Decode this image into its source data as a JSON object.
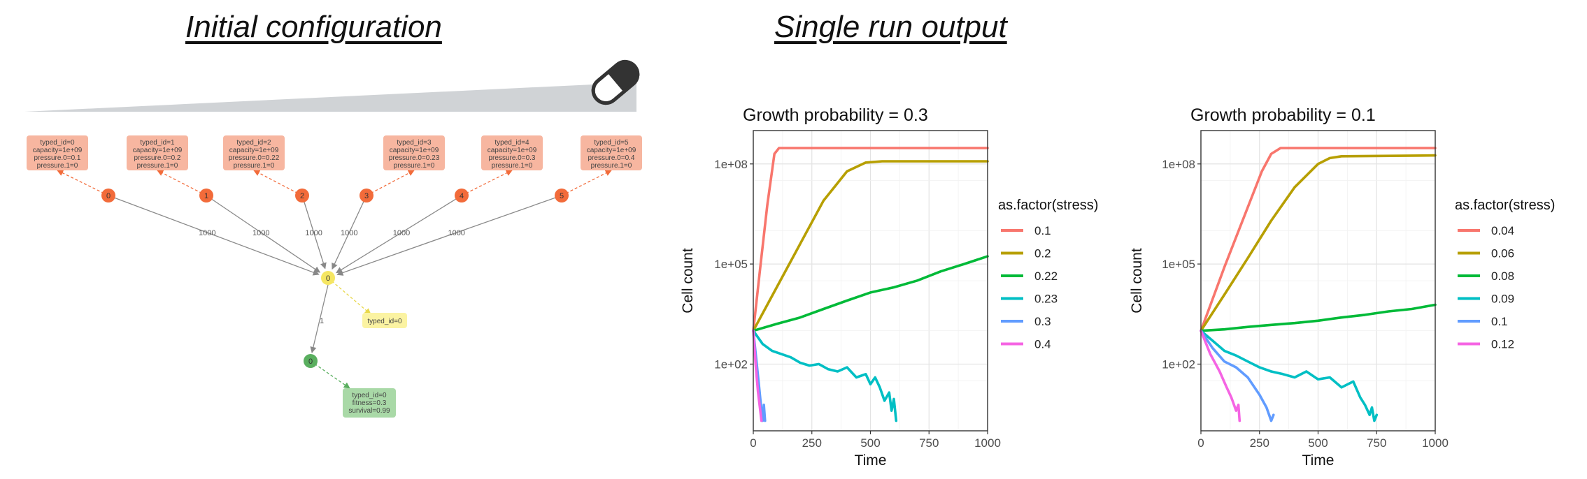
{
  "headings": {
    "left": "Initial configuration",
    "right": "Single run output"
  },
  "colors": {
    "stress_node": "#f26b3a",
    "stress_box": "#f7b6a0",
    "pop_node": "#f5e663",
    "pop_box": "#fbf3a2",
    "mut_node": "#5aaf5f",
    "mut_box": "#a9d9a7",
    "wedge": "#d0d3d6"
  },
  "diagram": {
    "stress_nodes": [
      {
        "id": "0",
        "lines": [
          "typed_id=0",
          "capacity=1e+09",
          "pressure.0=0.1",
          "pressure.1=0"
        ],
        "edge": "1000"
      },
      {
        "id": "1",
        "lines": [
          "typed_id=1",
          "capacity=1e+09",
          "pressure.0=0.2",
          "pressure.1=0"
        ],
        "edge": "1000"
      },
      {
        "id": "2",
        "lines": [
          "typed_id=2",
          "capacity=1e+09",
          "pressure.0=0.22",
          "pressure.1=0"
        ],
        "edge": "1000"
      },
      {
        "id": "3",
        "lines": [
          "typed_id=3",
          "capacity=1e+09",
          "pressure.0=0.23",
          "pressure.1=0"
        ],
        "edge": "1000"
      },
      {
        "id": "4",
        "lines": [
          "typed_id=4",
          "capacity=1e+09",
          "pressure.0=0.3",
          "pressure.1=0"
        ],
        "edge": "1000"
      },
      {
        "id": "5",
        "lines": [
          "typed_id=5",
          "capacity=1e+09",
          "pressure.0=0.4",
          "pressure.1=0"
        ],
        "edge": "1000"
      }
    ],
    "population_node": {
      "id": "0",
      "label": "typed_id=0"
    },
    "population_edge": "1",
    "mutation_node": {
      "id": "0",
      "lines": [
        "typed_id=0",
        "fitness=0.3",
        "survival=0.99"
      ]
    }
  },
  "chart_data": [
    {
      "type": "line",
      "title": "Growth probability = 0.3",
      "xlabel": "Time",
      "ylabel": "Cell count",
      "y_scale": "log10",
      "xlim": [
        0,
        1000
      ],
      "ylim": [
        1,
        1000000000
      ],
      "x_ticks": [
        "0",
        "250",
        "500",
        "750",
        "1000"
      ],
      "y_ticks": [
        "1e+02",
        "1e+05",
        "1e+08"
      ],
      "grid": true,
      "legend_title": "as.factor(stress)",
      "legend_position": "right",
      "series": [
        {
          "name": "0.1",
          "color": "#f8766d",
          "points": [
            [
              0,
              1000
            ],
            [
              30,
              80000
            ],
            [
              60,
              6000000
            ],
            [
              90,
              200000000
            ],
            [
              110,
              300000000
            ],
            [
              1000,
              300000000
            ]
          ]
        },
        {
          "name": "0.2",
          "color": "#b79f00",
          "points": [
            [
              0,
              1000
            ],
            [
              100,
              20000
            ],
            [
              200,
              400000
            ],
            [
              300,
              8000000
            ],
            [
              400,
              60000000
            ],
            [
              480,
              110000000
            ],
            [
              550,
              120000000
            ],
            [
              1000,
              120000000
            ]
          ]
        },
        {
          "name": "0.22",
          "color": "#00ba38",
          "points": [
            [
              0,
              1000
            ],
            [
              100,
              1600
            ],
            [
              200,
              2500
            ],
            [
              300,
              4500
            ],
            [
              400,
              8000
            ],
            [
              500,
              14000
            ],
            [
              600,
              20000
            ],
            [
              700,
              32000
            ],
            [
              800,
              60000
            ],
            [
              900,
              100000
            ],
            [
              1000,
              170000
            ]
          ]
        },
        {
          "name": "0.23",
          "color": "#00bfc4",
          "points": [
            [
              0,
              1000
            ],
            [
              40,
              400
            ],
            [
              80,
              250
            ],
            [
              120,
              200
            ],
            [
              160,
              160
            ],
            [
              200,
              110
            ],
            [
              240,
              90
            ],
            [
              280,
              100
            ],
            [
              320,
              70
            ],
            [
              360,
              60
            ],
            [
              400,
              80
            ],
            [
              440,
              40
            ],
            [
              480,
              50
            ],
            [
              500,
              25
            ],
            [
              520,
              40
            ],
            [
              540,
              20
            ],
            [
              560,
              8
            ],
            [
              580,
              14
            ],
            [
              590,
              4
            ],
            [
              600,
              9
            ],
            [
              610,
              2
            ]
          ]
        },
        {
          "name": "0.3",
          "color": "#619cff",
          "points": [
            [
              0,
              1000
            ],
            [
              15,
              100
            ],
            [
              25,
              20
            ],
            [
              35,
              4
            ],
            [
              40,
              2
            ],
            [
              45,
              6
            ],
            [
              50,
              2
            ]
          ]
        },
        {
          "name": "0.4",
          "color": "#f564e3",
          "points": [
            [
              0,
              1000
            ],
            [
              10,
              100
            ],
            [
              20,
              15
            ],
            [
              30,
              4
            ],
            [
              35,
              2
            ]
          ]
        }
      ]
    },
    {
      "type": "line",
      "title": "Growth probability = 0.1",
      "xlabel": "Time",
      "ylabel": "Cell count",
      "y_scale": "log10",
      "xlim": [
        0,
        1000
      ],
      "ylim": [
        1,
        1000000000
      ],
      "x_ticks": [
        "0",
        "250",
        "500",
        "750",
        "1000"
      ],
      "y_ticks": [
        "1e+02",
        "1e+05",
        "1e+08"
      ],
      "grid": true,
      "legend_title": "as.factor(stress)",
      "legend_position": "right",
      "series": [
        {
          "name": "0.04",
          "color": "#f8766d",
          "points": [
            [
              0,
              1000
            ],
            [
              100,
              80000
            ],
            [
              200,
              5000000
            ],
            [
              260,
              60000000
            ],
            [
              300,
              200000000
            ],
            [
              340,
              300000000
            ],
            [
              1000,
              300000000
            ]
          ]
        },
        {
          "name": "0.06",
          "color": "#b79f00",
          "points": [
            [
              0,
              1000
            ],
            [
              100,
              12000
            ],
            [
              200,
              150000
            ],
            [
              300,
              2000000
            ],
            [
              400,
              20000000
            ],
            [
              500,
              100000000
            ],
            [
              550,
              150000000
            ],
            [
              600,
              170000000
            ],
            [
              1000,
              180000000
            ]
          ]
        },
        {
          "name": "0.08",
          "color": "#00ba38",
          "points": [
            [
              0,
              1000
            ],
            [
              100,
              1100
            ],
            [
              200,
              1300
            ],
            [
              300,
              1500
            ],
            [
              400,
              1700
            ],
            [
              500,
              2000
            ],
            [
              600,
              2500
            ],
            [
              700,
              3000
            ],
            [
              800,
              3800
            ],
            [
              900,
              4500
            ],
            [
              1000,
              6000
            ]
          ]
        },
        {
          "name": "0.09",
          "color": "#00bfc4",
          "points": [
            [
              0,
              1000
            ],
            [
              50,
              500
            ],
            [
              100,
              250
            ],
            [
              150,
              180
            ],
            [
              200,
              120
            ],
            [
              250,
              80
            ],
            [
              300,
              60
            ],
            [
              350,
              50
            ],
            [
              400,
              40
            ],
            [
              450,
              60
            ],
            [
              500,
              35
            ],
            [
              550,
              40
            ],
            [
              600,
              20
            ],
            [
              650,
              30
            ],
            [
              680,
              10
            ],
            [
              700,
              6
            ],
            [
              720,
              3
            ],
            [
              730,
              5
            ],
            [
              740,
              2
            ],
            [
              750,
              3
            ]
          ]
        },
        {
          "name": "0.1",
          "color": "#619cff",
          "points": [
            [
              0,
              1000
            ],
            [
              50,
              300
            ],
            [
              100,
              120
            ],
            [
              150,
              80
            ],
            [
              200,
              40
            ],
            [
              250,
              12
            ],
            [
              280,
              5
            ],
            [
              300,
              2
            ],
            [
              310,
              3
            ]
          ]
        },
        {
          "name": "0.12",
          "color": "#f564e3",
          "points": [
            [
              0,
              1000
            ],
            [
              40,
              200
            ],
            [
              80,
              60
            ],
            [
              110,
              20
            ],
            [
              130,
              10
            ],
            [
              150,
              4
            ],
            [
              160,
              6
            ],
            [
              165,
              2
            ]
          ]
        }
      ]
    }
  ]
}
